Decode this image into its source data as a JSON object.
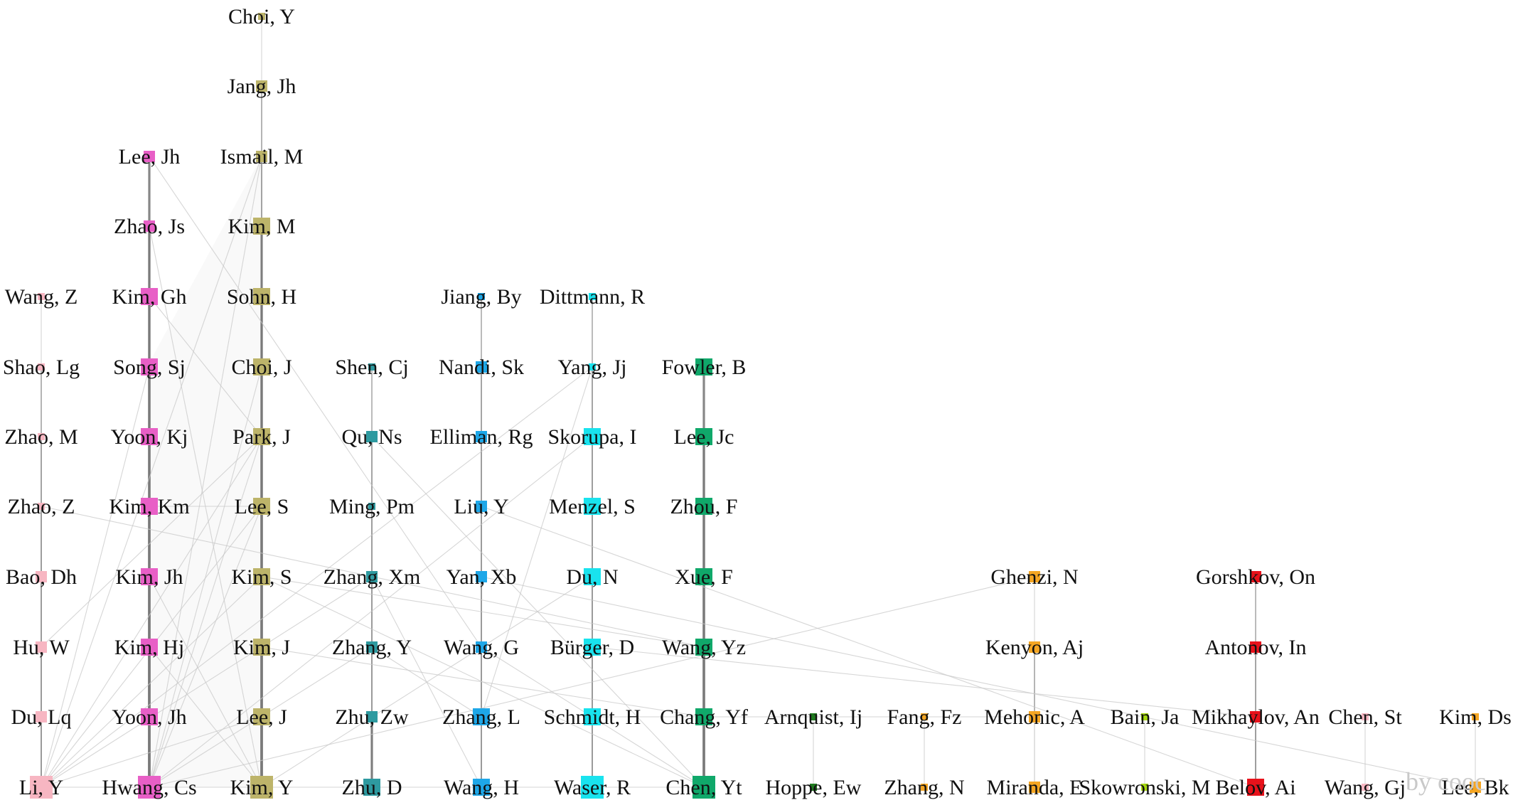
{
  "watermark": "by cooc",
  "colors": {
    "pink": "#f7b6c2",
    "magenta": "#e85fc6",
    "olive": "#bdb46a",
    "teal": "#2e9aa0",
    "blue": "#1ea7e8",
    "cyan": "#19e3ee",
    "green": "#10a86a",
    "darkgreen": "#1f7a1f",
    "orange": "#f5a623",
    "lime": "#a6d90f",
    "red": "#e8121b"
  },
  "nodes": [
    {
      "id": "wang_z",
      "label": "Wang, Z",
      "color": "pink",
      "size": 1
    },
    {
      "id": "shao_lg",
      "label": "Shao, Lg",
      "color": "pink",
      "size": 1
    },
    {
      "id": "zhao_m",
      "label": "Zhao, M",
      "color": "pink",
      "size": 1
    },
    {
      "id": "zhao_z",
      "label": "Zhao, Z",
      "color": "pink",
      "size": 1
    },
    {
      "id": "bao_dh",
      "label": "Bao, Dh",
      "color": "pink",
      "size": 2
    },
    {
      "id": "hu_w",
      "label": "Hu, W",
      "color": "pink",
      "size": 2
    },
    {
      "id": "du_lq",
      "label": "Du, Lq",
      "color": "pink",
      "size": 2
    },
    {
      "id": "li_y",
      "label": "Li, Y",
      "color": "pink",
      "size": 4
    },
    {
      "id": "lee_jh",
      "label": "Lee, Jh",
      "color": "magenta",
      "size": 2
    },
    {
      "id": "zhao_js",
      "label": "Zhao, Js",
      "color": "magenta",
      "size": 2
    },
    {
      "id": "kim_gh",
      "label": "Kim, Gh",
      "color": "magenta",
      "size": 3
    },
    {
      "id": "song_sj",
      "label": "Song, Sj",
      "color": "magenta",
      "size": 3
    },
    {
      "id": "yoon_kj",
      "label": "Yoon, Kj",
      "color": "magenta",
      "size": 3
    },
    {
      "id": "kim_km",
      "label": "Kim, Km",
      "color": "magenta",
      "size": 3
    },
    {
      "id": "kim_jh",
      "label": "Kim, Jh",
      "color": "magenta",
      "size": 3
    },
    {
      "id": "kim_hj",
      "label": "Kim, Hj",
      "color": "magenta",
      "size": 3
    },
    {
      "id": "yoon_jh",
      "label": "Yoon, Jh",
      "color": "magenta",
      "size": 3
    },
    {
      "id": "hwang_cs",
      "label": "Hwang, Cs",
      "color": "magenta",
      "size": 4
    },
    {
      "id": "choi_y",
      "label": "Choi, Y",
      "color": "olive",
      "size": 1
    },
    {
      "id": "jang_jh",
      "label": "Jang, Jh",
      "color": "olive",
      "size": 2
    },
    {
      "id": "ismail_m",
      "label": "Ismail, M",
      "color": "olive",
      "size": 2
    },
    {
      "id": "kim_m",
      "label": "Kim, M",
      "color": "olive",
      "size": 3
    },
    {
      "id": "sohn_h",
      "label": "Sohn, H",
      "color": "olive",
      "size": 3
    },
    {
      "id": "choi_j",
      "label": "Choi, J",
      "color": "olive",
      "size": 3
    },
    {
      "id": "park_j",
      "label": "Park, J",
      "color": "olive",
      "size": 3
    },
    {
      "id": "lee_s",
      "label": "Lee, S",
      "color": "olive",
      "size": 3
    },
    {
      "id": "kim_s",
      "label": "Kim, S",
      "color": "olive",
      "size": 3
    },
    {
      "id": "kim_j",
      "label": "Kim, J",
      "color": "olive",
      "size": 3
    },
    {
      "id": "lee_j",
      "label": "Lee, J",
      "color": "olive",
      "size": 3
    },
    {
      "id": "kim_y",
      "label": "Kim, Y",
      "color": "olive",
      "size": 4
    },
    {
      "id": "shen_cj",
      "label": "Shen, Cj",
      "color": "teal",
      "size": 1
    },
    {
      "id": "qu_ns",
      "label": "Qu, Ns",
      "color": "teal",
      "size": 2
    },
    {
      "id": "ming_pm",
      "label": "Ming, Pm",
      "color": "teal",
      "size": 1
    },
    {
      "id": "zhang_xm",
      "label": "Zhang, Xm",
      "color": "teal",
      "size": 2
    },
    {
      "id": "zhang_y",
      "label": "Zhang, Y",
      "color": "teal",
      "size": 2
    },
    {
      "id": "zhu_zw",
      "label": "Zhu, Zw",
      "color": "teal",
      "size": 2
    },
    {
      "id": "zhu_d",
      "label": "Zhu, D",
      "color": "teal",
      "size": 3
    },
    {
      "id": "jiang_by",
      "label": "Jiang, By",
      "color": "blue",
      "size": 1
    },
    {
      "id": "nandi_sk",
      "label": "Nandi, Sk",
      "color": "blue",
      "size": 2
    },
    {
      "id": "elliman_rg",
      "label": "Elliman, Rg",
      "color": "blue",
      "size": 2
    },
    {
      "id": "liu_y",
      "label": "Liu, Y",
      "color": "blue",
      "size": 2
    },
    {
      "id": "yan_xb",
      "label": "Yan, Xb",
      "color": "blue",
      "size": 2
    },
    {
      "id": "wang_g",
      "label": "Wang, G",
      "color": "blue",
      "size": 2
    },
    {
      "id": "zhang_l",
      "label": "Zhang, L",
      "color": "blue",
      "size": 3
    },
    {
      "id": "wang_h",
      "label": "Wang, H",
      "color": "blue",
      "size": 3
    },
    {
      "id": "dittmann_r",
      "label": "Dittmann, R",
      "color": "cyan",
      "size": 1
    },
    {
      "id": "yang_jj",
      "label": "Yang, Jj",
      "color": "cyan",
      "size": 1
    },
    {
      "id": "skorupa_i",
      "label": "Skorupa, I",
      "color": "cyan",
      "size": 3
    },
    {
      "id": "menzel_s",
      "label": "Menzel, S",
      "color": "cyan",
      "size": 3
    },
    {
      "id": "du_n",
      "label": "Du, N",
      "color": "cyan",
      "size": 3
    },
    {
      "id": "burger_d",
      "label": "Bürger, D",
      "color": "cyan",
      "size": 3
    },
    {
      "id": "schmidt_h",
      "label": "Schmidt, H",
      "color": "cyan",
      "size": 3
    },
    {
      "id": "waser_r",
      "label": "Waser, R",
      "color": "cyan",
      "size": 4
    },
    {
      "id": "fowler_b",
      "label": "Fowler, B",
      "color": "green",
      "size": 3
    },
    {
      "id": "lee_jc",
      "label": "Lee, Jc",
      "color": "green",
      "size": 3
    },
    {
      "id": "zhou_f",
      "label": "Zhou, F",
      "color": "green",
      "size": 3
    },
    {
      "id": "xue_f",
      "label": "Xue, F",
      "color": "green",
      "size": 3
    },
    {
      "id": "wang_yz",
      "label": "Wang, Yz",
      "color": "green",
      "size": 3
    },
    {
      "id": "chang_yf",
      "label": "Chang, Yf",
      "color": "green",
      "size": 3
    },
    {
      "id": "chen_yt",
      "label": "Chen, Yt",
      "color": "green",
      "size": 4
    },
    {
      "id": "arnquist_ij",
      "label": "Arnquist, Ij",
      "color": "darkgreen",
      "size": 1
    },
    {
      "id": "hoppe_ew",
      "label": "Hoppe, Ew",
      "color": "darkgreen",
      "size": 1
    },
    {
      "id": "fang_fz",
      "label": "Fang, Fz",
      "color": "orange",
      "size": 1
    },
    {
      "id": "zhang_n",
      "label": "Zhang, N",
      "color": "orange",
      "size": 1
    },
    {
      "id": "ghenzi_n",
      "label": "Ghenzi, N",
      "color": "orange",
      "size": 2
    },
    {
      "id": "kenyon_aj",
      "label": "Kenyon, Aj",
      "color": "orange",
      "size": 2
    },
    {
      "id": "mehonic_a",
      "label": "Mehonic, A",
      "color": "orange",
      "size": 2
    },
    {
      "id": "miranda_e",
      "label": "Miranda, E",
      "color": "orange",
      "size": 2
    },
    {
      "id": "bain_ja",
      "label": "Bain, Ja",
      "color": "lime",
      "size": 1
    },
    {
      "id": "skowronski_m",
      "label": "Skowronski, M",
      "color": "lime",
      "size": 1
    },
    {
      "id": "gorshkov_on",
      "label": "Gorshkov, On",
      "color": "red",
      "size": 2
    },
    {
      "id": "antonov_in",
      "label": "Antonov, In",
      "color": "red",
      "size": 2
    },
    {
      "id": "mikhaylov_an",
      "label": "Mikhaylov, An",
      "color": "red",
      "size": 2
    },
    {
      "id": "belov_ai",
      "label": "Belov, Ai",
      "color": "red",
      "size": 3
    },
    {
      "id": "chen_st",
      "label": "Chen, St",
      "color": "pink",
      "size": 1
    },
    {
      "id": "wang_gj",
      "label": "Wang, Gj",
      "color": "pink",
      "size": 1
    },
    {
      "id": "kim_ds",
      "label": "Kim, Ds",
      "color": "orange",
      "size": 1
    },
    {
      "id": "lee_bk",
      "label": "Lee, Bk",
      "color": "orange",
      "size": 2
    }
  ],
  "edges": [
    [
      "wang_z",
      "li_y",
      1
    ],
    [
      "shao_lg",
      "li_y",
      2
    ],
    [
      "zhao_m",
      "li_y",
      2
    ],
    [
      "zhao_z",
      "li_y",
      2
    ],
    [
      "bao_dh",
      "li_y",
      2
    ],
    [
      "hu_w",
      "li_y",
      2
    ],
    [
      "du_lq",
      "li_y",
      2
    ],
    [
      "lee_jh",
      "hwang_cs",
      3
    ],
    [
      "zhao_js",
      "hwang_cs",
      3
    ],
    [
      "kim_gh",
      "hwang_cs",
      3
    ],
    [
      "song_sj",
      "hwang_cs",
      3
    ],
    [
      "yoon_kj",
      "hwang_cs",
      3
    ],
    [
      "kim_km",
      "hwang_cs",
      3
    ],
    [
      "kim_jh",
      "hwang_cs",
      3
    ],
    [
      "kim_hj",
      "hwang_cs",
      3
    ],
    [
      "yoon_jh",
      "hwang_cs",
      3
    ],
    [
      "choi_y",
      "kim_y",
      1
    ],
    [
      "jang_jh",
      "kim_y",
      2
    ],
    [
      "ismail_m",
      "kim_y",
      2
    ],
    [
      "kim_m",
      "kim_y",
      3
    ],
    [
      "sohn_h",
      "kim_y",
      3
    ],
    [
      "choi_j",
      "kim_y",
      3
    ],
    [
      "park_j",
      "kim_y",
      3
    ],
    [
      "lee_s",
      "kim_y",
      3
    ],
    [
      "kim_s",
      "kim_y",
      3
    ],
    [
      "kim_j",
      "kim_y",
      3
    ],
    [
      "lee_j",
      "kim_y",
      3
    ],
    [
      "shen_cj",
      "zhu_d",
      2
    ],
    [
      "qu_ns",
      "zhu_d",
      2
    ],
    [
      "ming_pm",
      "zhu_d",
      2
    ],
    [
      "zhang_xm",
      "zhu_d",
      2
    ],
    [
      "zhang_y",
      "zhu_d",
      2
    ],
    [
      "zhu_zw",
      "zhu_d",
      3
    ],
    [
      "jiang_by",
      "wang_h",
      2
    ],
    [
      "nandi_sk",
      "wang_h",
      2
    ],
    [
      "elliman_rg",
      "wang_h",
      2
    ],
    [
      "liu_y",
      "wang_h",
      2
    ],
    [
      "yan_xb",
      "wang_h",
      2
    ],
    [
      "wang_g",
      "wang_h",
      2
    ],
    [
      "zhang_l",
      "wang_h",
      2
    ],
    [
      "dittmann_r",
      "waser_r",
      2
    ],
    [
      "yang_jj",
      "waser_r",
      2
    ],
    [
      "skorupa_i",
      "waser_r",
      2
    ],
    [
      "menzel_s",
      "waser_r",
      2
    ],
    [
      "du_n",
      "waser_r",
      2
    ],
    [
      "burger_d",
      "waser_r",
      2
    ],
    [
      "schmidt_h",
      "waser_r",
      2
    ],
    [
      "fowler_b",
      "chen_yt",
      3
    ],
    [
      "lee_jc",
      "chen_yt",
      3
    ],
    [
      "zhou_f",
      "chen_yt",
      3
    ],
    [
      "xue_f",
      "chen_yt",
      3
    ],
    [
      "wang_yz",
      "chen_yt",
      3
    ],
    [
      "chang_yf",
      "chen_yt",
      3
    ],
    [
      "arnquist_ij",
      "hoppe_ew",
      1
    ],
    [
      "fang_fz",
      "zhang_n",
      1
    ],
    [
      "ghenzi_n",
      "miranda_e",
      1
    ],
    [
      "kenyon_aj",
      "mehonic_a",
      2
    ],
    [
      "mehonic_a",
      "miranda_e",
      1
    ],
    [
      "bain_ja",
      "skowronski_m",
      1
    ],
    [
      "gorshkov_on",
      "belov_ai",
      2
    ],
    [
      "antonov_in",
      "belov_ai",
      2
    ],
    [
      "mikhaylov_an",
      "belov_ai",
      2
    ],
    [
      "chen_st",
      "wang_gj",
      1
    ],
    [
      "kim_ds",
      "lee_bk",
      1
    ],
    [
      "li_y",
      "hwang_cs",
      1
    ],
    [
      "hwang_cs",
      "kim_y",
      1
    ],
    [
      "kim_y",
      "zhu_d",
      1
    ],
    [
      "zhu_d",
      "wang_h",
      1
    ],
    [
      "wang_h",
      "waser_r",
      1
    ],
    [
      "waser_r",
      "chen_yt",
      1
    ],
    [
      "lee_jh",
      "wang_g",
      1
    ],
    [
      "zhao_js",
      "kim_y",
      1
    ],
    [
      "ismail_m",
      "hwang_cs",
      1
    ],
    [
      "ismail_m",
      "li_y",
      1
    ],
    [
      "song_sj",
      "li_y",
      1
    ],
    [
      "park_j",
      "li_y",
      1
    ],
    [
      "park_j",
      "hwang_cs",
      1
    ],
    [
      "choi_j",
      "hwang_cs",
      1
    ],
    [
      "lee_s",
      "li_y",
      1
    ],
    [
      "lee_s",
      "hwang_cs",
      1
    ],
    [
      "kim_s",
      "wang_yz",
      1
    ],
    [
      "kim_s",
      "li_y",
      1
    ],
    [
      "kim_s",
      "chen_yt",
      1
    ],
    [
      "kim_j",
      "chang_yf",
      1
    ],
    [
      "kim_jh",
      "kim_y",
      1
    ],
    [
      "kim_hj",
      "kim_y",
      1
    ],
    [
      "zhao_z",
      "wang_yz",
      1
    ],
    [
      "hu_w",
      "park_j",
      1
    ],
    [
      "li_y",
      "zhang_xm",
      1
    ],
    [
      "hwang_cs",
      "zhang_y",
      1
    ],
    [
      "qu_ns",
      "chen_yt",
      1
    ],
    [
      "zhang_xm",
      "wang_h",
      1
    ],
    [
      "yang_jj",
      "zhang_l",
      1
    ],
    [
      "yang_jj",
      "li_y",
      1
    ],
    [
      "skorupa_i",
      "hwang_cs",
      1
    ],
    [
      "liu_y",
      "belov_ai",
      1
    ],
    [
      "yan_xb",
      "lee_bk",
      1
    ],
    [
      "wang_g",
      "chen_yt",
      1
    ],
    [
      "burger_d",
      "mikhaylov_an",
      1
    ],
    [
      "schmidt_h",
      "mehonic_a",
      1
    ],
    [
      "du_n",
      "kim_y",
      1
    ],
    [
      "ghenzi_n",
      "hwang_cs",
      1
    ],
    [
      "zhang_y",
      "zhang_l",
      1
    ],
    [
      "kim_gh",
      "park_j",
      1
    ],
    [
      "lee_j",
      "li_y",
      1
    ],
    [
      "kim_km",
      "lee_s",
      1
    ]
  ]
}
